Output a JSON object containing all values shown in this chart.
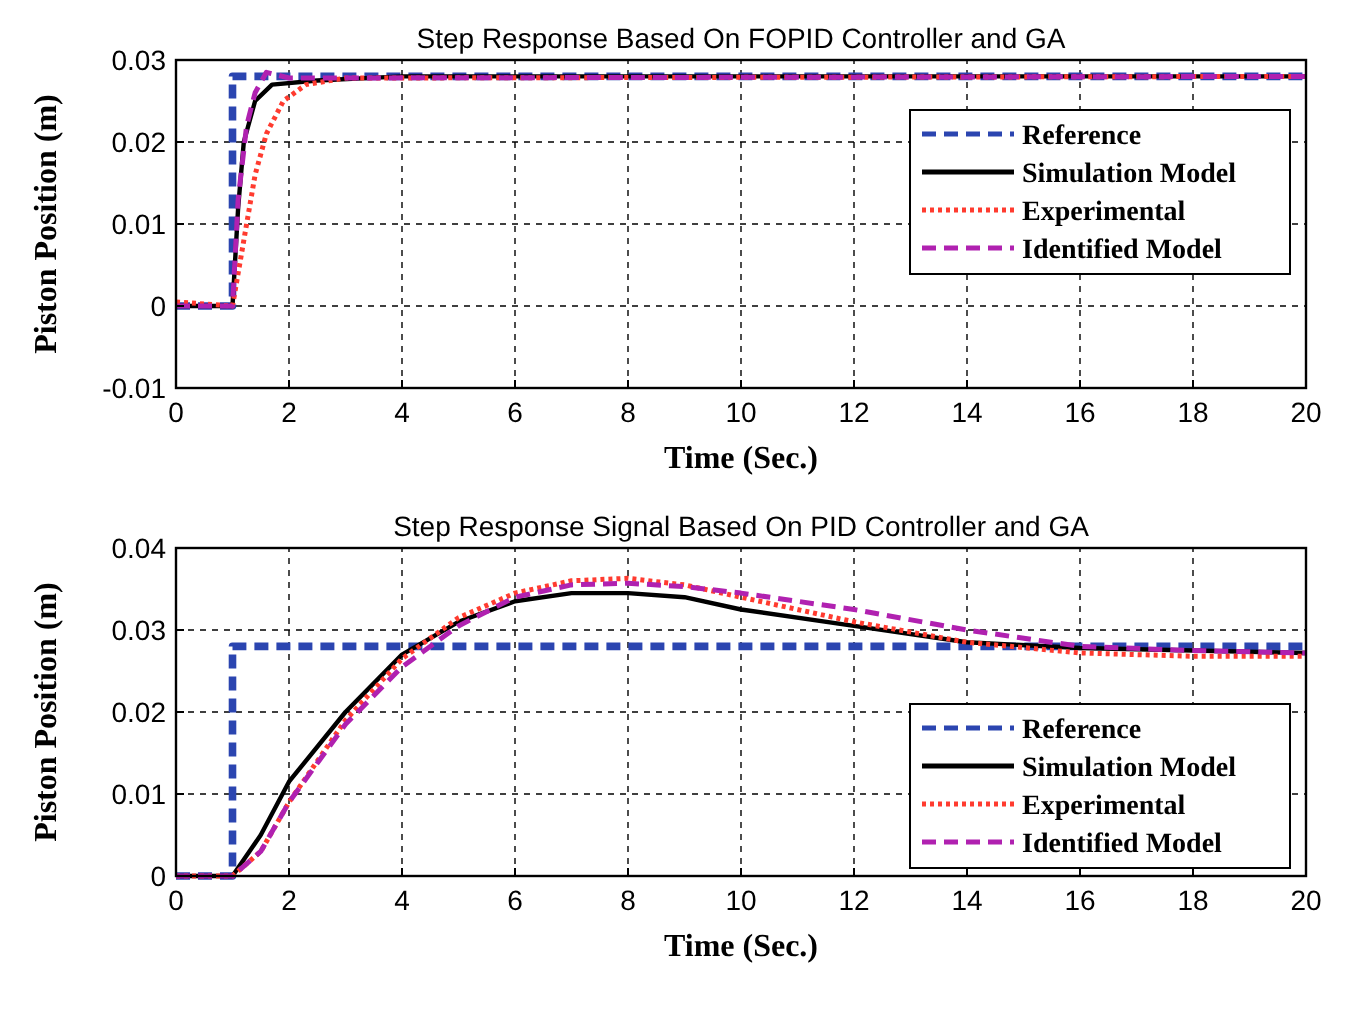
{
  "chart_data": [
    {
      "type": "line",
      "title": "Step Response  Based On FOPID Controller and GA",
      "xlabel": "Time (Sec.)",
      "ylabel": "Piston Position (m)",
      "xlim": [
        0,
        20
      ],
      "ylim": [
        -0.01,
        0.03
      ],
      "xticks": [
        0,
        2,
        4,
        6,
        8,
        10,
        12,
        14,
        16,
        18,
        20
      ],
      "yticks": [
        -0.01,
        0,
        0.01,
        0.02,
        0.03
      ],
      "grid": true,
      "legend": "top right",
      "series": [
        {
          "name": "Reference",
          "color": "#2b45b0",
          "line_style": "dashed",
          "x": [
            0,
            1,
            1,
            20
          ],
          "values": [
            0,
            0,
            0.028,
            0.028
          ]
        },
        {
          "name": "Simulation Model",
          "color": "#000000",
          "line_style": "solid",
          "x": [
            0,
            1,
            1.1,
            1.2,
            1.4,
            1.7,
            2.5,
            4,
            20
          ],
          "values": [
            0,
            0,
            0.012,
            0.02,
            0.025,
            0.027,
            0.0275,
            0.028,
            0.028
          ]
        },
        {
          "name": "Experimental",
          "color": "#ff3b2f",
          "line_style": "dotted",
          "x": [
            0,
            1,
            1.2,
            1.4,
            1.6,
            1.9,
            2.3,
            3,
            20
          ],
          "values": [
            0.0005,
            0,
            0.008,
            0.016,
            0.021,
            0.025,
            0.027,
            0.0278,
            0.028
          ]
        },
        {
          "name": "Identified Model",
          "color": "#b021b0",
          "line_style": "dashed",
          "x": [
            0,
            1,
            1.1,
            1.25,
            1.4,
            1.6,
            2,
            20
          ],
          "values": [
            0,
            0,
            0.013,
            0.022,
            0.026,
            0.0285,
            0.0278,
            0.028
          ]
        }
      ]
    },
    {
      "type": "line",
      "title": "Step Response Signal Based On PID Controller and GA",
      "xlabel": "Time (Sec.)",
      "ylabel": "Piston Position (m)",
      "xlim": [
        0,
        20
      ],
      "ylim": [
        0,
        0.04
      ],
      "xticks": [
        0,
        2,
        4,
        6,
        8,
        10,
        12,
        14,
        16,
        18,
        20
      ],
      "yticks": [
        0,
        0.01,
        0.02,
        0.03,
        0.04
      ],
      "grid": true,
      "legend": "bottom right",
      "series": [
        {
          "name": "Reference",
          "color": "#2b45b0",
          "line_style": "dashed",
          "x": [
            0,
            1,
            1,
            20
          ],
          "values": [
            0,
            0,
            0.028,
            0.028
          ]
        },
        {
          "name": "Simulation Model",
          "color": "#000000",
          "line_style": "solid",
          "x": [
            0,
            1,
            1.5,
            2,
            3,
            4,
            5,
            6,
            7,
            8,
            9,
            10,
            12,
            14,
            16,
            18,
            20
          ],
          "values": [
            0,
            0,
            0.005,
            0.0115,
            0.02,
            0.027,
            0.031,
            0.0335,
            0.0345,
            0.0345,
            0.034,
            0.0325,
            0.0305,
            0.0285,
            0.0278,
            0.0275,
            0.0272
          ]
        },
        {
          "name": "Experimental",
          "color": "#ff3b2f",
          "line_style": "dotted",
          "x": [
            0,
            1,
            1.5,
            2,
            3,
            4,
            5,
            6,
            7,
            8,
            9,
            10,
            12,
            14,
            16,
            18,
            20
          ],
          "values": [
            0,
            0,
            0.003,
            0.009,
            0.019,
            0.0265,
            0.0315,
            0.0345,
            0.036,
            0.0363,
            0.0355,
            0.034,
            0.031,
            0.0285,
            0.0272,
            0.0268,
            0.0268
          ]
        },
        {
          "name": "Identified Model",
          "color": "#b021b0",
          "line_style": "dashed",
          "x": [
            0,
            1,
            1.5,
            2,
            3,
            4,
            5,
            6,
            7,
            8,
            9,
            10,
            12,
            14,
            16,
            18,
            20
          ],
          "values": [
            0,
            0,
            0.003,
            0.009,
            0.0185,
            0.0255,
            0.0305,
            0.034,
            0.0355,
            0.0357,
            0.0353,
            0.0345,
            0.0325,
            0.03,
            0.028,
            0.0275,
            0.0272
          ]
        }
      ]
    }
  ]
}
